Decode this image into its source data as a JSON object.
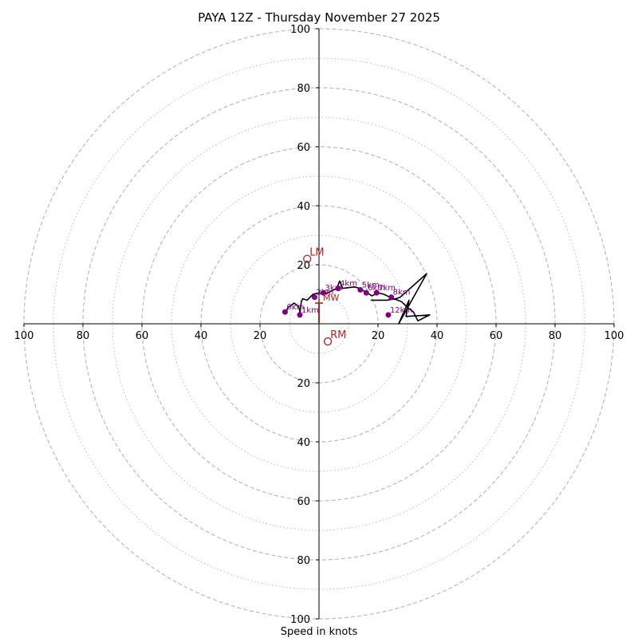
{
  "chart_data": {
    "type": "hodograph",
    "title": "PAYA 12Z - Thursday November 27 2025",
    "xlabel": "Speed in knots",
    "axis_range": [
      -100,
      100
    ],
    "tick_labels": [
      {
        "value": -100,
        "label": "100"
      },
      {
        "value": -80,
        "label": "80"
      },
      {
        "value": -60,
        "label": "60"
      },
      {
        "value": -40,
        "label": "40"
      },
      {
        "value": -20,
        "label": "20"
      },
      {
        "value": 20,
        "label": "20"
      },
      {
        "value": 40,
        "label": "40"
      },
      {
        "value": 60,
        "label": "60"
      },
      {
        "value": 80,
        "label": "80"
      },
      {
        "value": 100,
        "label": "100"
      }
    ],
    "ring_dashed": [
      20,
      40,
      60,
      80,
      100
    ],
    "ring_dotted": [
      10,
      30,
      50,
      70,
      90
    ],
    "hodograph_line": [
      [
        -11,
        4.5
      ],
      [
        -10.5,
        5.5
      ],
      [
        -8.5,
        7
      ],
      [
        -7,
        6
      ],
      [
        -6.5,
        4.5
      ],
      [
        -6.5,
        3
      ],
      [
        -6,
        7.5
      ],
      [
        -5.5,
        8.5
      ],
      [
        -4,
        8
      ],
      [
        -3,
        9
      ],
      [
        -2,
        10
      ],
      [
        0,
        10.5
      ],
      [
        2,
        10
      ],
      [
        4,
        11
      ],
      [
        6,
        12
      ],
      [
        7,
        14.5
      ],
      [
        8,
        12
      ],
      [
        12,
        12.5
      ],
      [
        14,
        12
      ],
      [
        16,
        10.5
      ],
      [
        18,
        9.5
      ],
      [
        20,
        10.5
      ],
      [
        22,
        10
      ],
      [
        24,
        9
      ],
      [
        28,
        7.5
      ],
      [
        30,
        5.5
      ],
      [
        32,
        4
      ],
      [
        33.5,
        1
      ],
      [
        37.5,
        3
      ],
      [
        29.5,
        2.5
      ],
      [
        30.5,
        8
      ],
      [
        27,
        0
      ],
      [
        36.5,
        17
      ],
      [
        27.5,
        9
      ],
      [
        26,
        8.5
      ],
      [
        23,
        8
      ],
      [
        17.5,
        8
      ]
    ],
    "height_markers": [
      {
        "label": "0km",
        "u": -11.5,
        "v": 4
      },
      {
        "label": "1km",
        "u": -6.5,
        "v": 3
      },
      {
        "label": "2km",
        "u": -1.5,
        "v": 9
      },
      {
        "label": "3km",
        "u": 1.5,
        "v": 10.5
      },
      {
        "label": "4km",
        "u": 6.5,
        "v": 12
      },
      {
        "label": "5km",
        "u": 14,
        "v": 11.5
      },
      {
        "label": "6km",
        "u": 16,
        "v": 10.5
      },
      {
        "label": "7km",
        "u": 19.5,
        "v": 10.5
      },
      {
        "label": "8km",
        "u": 24.5,
        "v": 9
      },
      {
        "label": "12km",
        "u": 23.5,
        "v": 3
      }
    ],
    "storm_motion": [
      {
        "label": "LM",
        "u": -4,
        "v": 22
      },
      {
        "label": "RM",
        "u": 3,
        "v": -6
      }
    ],
    "mean_wind": {
      "label": "MW",
      "u": 0,
      "v": 7
    },
    "shear_vector": {
      "from": [
        0,
        0
      ],
      "to": [
        0,
        7
      ]
    },
    "colors": {
      "hodograph": "#000000",
      "markers": "#800080",
      "storm_motion": "#b22222",
      "grid": "#bbbbbb",
      "axis": "#000000"
    }
  }
}
